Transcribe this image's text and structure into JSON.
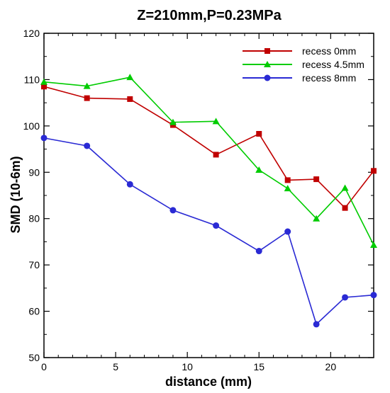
{
  "chart_data": {
    "type": "line",
    "title": "Z=210mm,P=0.23MPa",
    "xlabel": "distance (mm)",
    "ylabel": "SMD (10-6m)",
    "xlim": [
      0,
      23
    ],
    "ylim": [
      50,
      120
    ],
    "x_ticks": [
      0,
      5,
      10,
      15,
      20
    ],
    "y_ticks": [
      50,
      60,
      70,
      80,
      90,
      100,
      110,
      120
    ],
    "grid": false,
    "legend_position": "top-right",
    "x": [
      0,
      3,
      6,
      9,
      12,
      15,
      17,
      19,
      21,
      23
    ],
    "series": [
      {
        "name": "recess 0mm",
        "color": "#c00000",
        "marker": "square",
        "values": [
          108.5,
          106,
          105.8,
          100.2,
          93.8,
          98.3,
          88.3,
          88.5,
          82.3,
          90.3
        ]
      },
      {
        "name": "recess 4.5mm",
        "color": "#00cc00",
        "marker": "triangle",
        "values": [
          109.5,
          108.6,
          110.5,
          100.8,
          101,
          90.5,
          86.5,
          80,
          86.6,
          74.3
        ]
      },
      {
        "name": "recess 8mm",
        "color": "#2a2ad4",
        "marker": "circle",
        "values": [
          97.4,
          95.7,
          87.4,
          81.8,
          78.5,
          73,
          77.2,
          57.2,
          63,
          63.5
        ]
      }
    ]
  }
}
